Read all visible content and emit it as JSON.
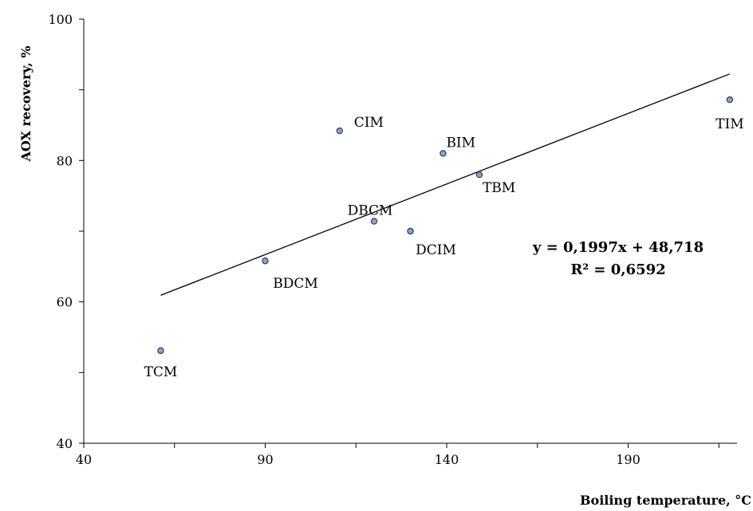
{
  "chart_data": {
    "type": "scatter",
    "xlabel": "Boiling temperature, °C",
    "ylabel": "AOX recovery, %",
    "xlim": [
      40,
      220
    ],
    "ylim": [
      40,
      100
    ],
    "x_ticks": [
      40,
      90,
      140,
      190
    ],
    "y_ticks": [
      40,
      60,
      80,
      100
    ],
    "grid": false,
    "points": [
      {
        "label": "TCM",
        "x": 61.2,
        "y": 53.1
      },
      {
        "label": "BDCM",
        "x": 90.0,
        "y": 65.8
      },
      {
        "label": "CIM",
        "x": 110.5,
        "y": 84.2
      },
      {
        "label": "DBCM",
        "x": 120.0,
        "y": 71.4
      },
      {
        "label": "DCIM",
        "x": 130.0,
        "y": 70.0
      },
      {
        "label": "BIM",
        "x": 139.0,
        "y": 81.0
      },
      {
        "label": "TBM",
        "x": 149.0,
        "y": 78.0
      },
      {
        "label": "TIM",
        "x": 218.0,
        "y": 88.6
      }
    ],
    "trendline": {
      "slope": 0.1997,
      "intercept": 48.718,
      "x_range": [
        61.2,
        218.0
      ],
      "equation": "y = 0,1997x + 48,718",
      "r_squared": "R² = 0,6592"
    },
    "colors": {
      "marker_fill": "#8fa5c8",
      "marker_stroke": "#2b3a55"
    }
  }
}
